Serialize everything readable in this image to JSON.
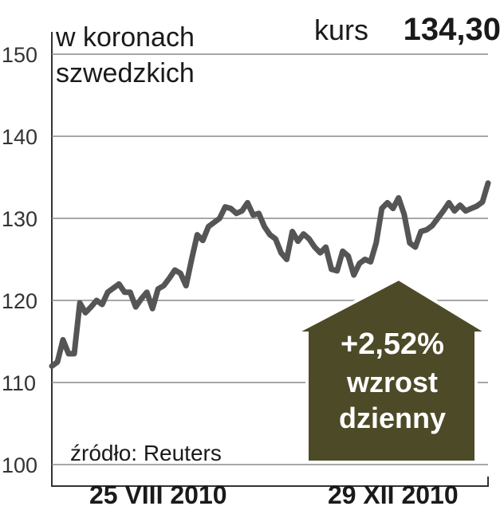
{
  "chart_data": {
    "type": "line",
    "subtitle_lines": [
      "w koronach",
      "szwedzkich"
    ],
    "price_label": "kurs",
    "price": "134,30",
    "annotation_lines": [
      "+2,52%",
      "wzrost",
      "dzienny"
    ],
    "source": "źródło: Reuters",
    "categories": [
      null,
      null,
      null,
      null,
      null,
      null,
      null,
      null,
      null,
      null,
      null,
      null,
      null,
      null,
      null,
      null,
      null,
      null,
      null,
      "25 VIII 2010",
      null,
      null,
      null,
      null,
      null,
      null,
      null,
      null,
      null,
      null,
      null,
      null,
      null,
      null,
      null,
      null,
      null,
      null,
      null,
      null,
      null,
      null,
      null,
      null,
      null,
      null,
      null,
      null,
      null,
      null,
      null,
      null,
      null,
      null,
      null,
      null,
      null,
      null,
      null,
      null,
      null,
      "29 XII 2010",
      null,
      null,
      null,
      null,
      null,
      null,
      null,
      null,
      null,
      null,
      null,
      null,
      null,
      null,
      null,
      null,
      null
    ],
    "series": [
      {
        "color": "#555555",
        "values": [
          112,
          112.5,
          115.2,
          113.5,
          113.5,
          119.7,
          118.5,
          119.2,
          120,
          119.5,
          121,
          121.5,
          122,
          121,
          121,
          119.2,
          120.2,
          121,
          119,
          121.4,
          121.8,
          122.7,
          123.7,
          123.3,
          121.8,
          125,
          128,
          127.3,
          129,
          129.5,
          130,
          131.4,
          131.2,
          130.6,
          130.9,
          131.9,
          130.4,
          130.6,
          129,
          128,
          127.5,
          125.8,
          125,
          128.4,
          127.2,
          128.1,
          127.5,
          126.5,
          125.8,
          126.5,
          123.8,
          123.6,
          126,
          125.4,
          123.1,
          124.5,
          125,
          124.7,
          127,
          131.2,
          131.9,
          131.2,
          132.5,
          130.5,
          127,
          126.5,
          128.4,
          128.6,
          129.1,
          130,
          130.9,
          131.9,
          130.9,
          131.6,
          130.9,
          131.2,
          131.5,
          132,
          134.3
        ]
      }
    ],
    "ylim": [
      100,
      150
    ],
    "yticks": [
      100,
      110,
      120,
      130,
      140,
      150
    ],
    "grid": true,
    "annotation_color": "#4d4a28"
  }
}
